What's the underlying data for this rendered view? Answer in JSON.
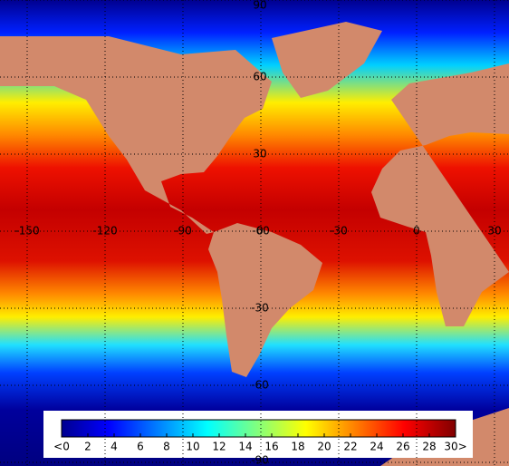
{
  "map": {
    "longitude_labels": [
      "-150",
      "-120",
      "-90",
      "-60",
      "-30",
      "0",
      "30"
    ],
    "latitude_labels": [
      "90",
      "60",
      "30",
      "0",
      "-30",
      "-60",
      "-90"
    ]
  },
  "colorbar": {
    "ticks": [
      "<0",
      "2",
      "4",
      "6",
      "8",
      "10",
      "12",
      "14",
      "16",
      "18",
      "20",
      "22",
      "24",
      "26",
      "28",
      "30>"
    ]
  }
}
